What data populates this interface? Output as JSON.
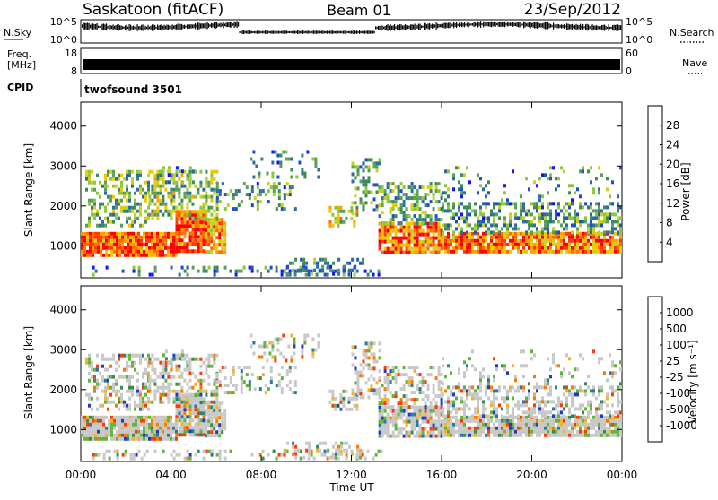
{
  "header": {
    "station": "Saskatoon (fitACF)",
    "beam": "Beam 01",
    "date": "23/Sep/2012"
  },
  "status_panels": {
    "nsky_label": "N.Sky",
    "nsky_ticks": [
      "10^5",
      "10^0"
    ],
    "nsearch_label": "N.Search",
    "nsearch_ticks": [
      "10^5",
      "10^0"
    ],
    "freq_label_1": "Freq.",
    "freq_label_2": "[MHz]",
    "freq_ticks": [
      "18",
      "8"
    ],
    "nave_label": "Nave",
    "nave_ticks": [
      "60",
      "0"
    ],
    "cpid_label": "CPID",
    "cpid_value": "twofsound 3501"
  },
  "chart_data": [
    {
      "type": "heatmap",
      "name": "power",
      "xlabel": "Time UT",
      "ylabel": "Slant Range [km]",
      "xlim": [
        0,
        24
      ],
      "ylim": [
        200,
        4600
      ],
      "x_ticks": [
        "00:00",
        "04:00",
        "08:00",
        "12:00",
        "16:00",
        "20:00",
        "00:00"
      ],
      "x_tick_values": [
        0,
        4,
        8,
        12,
        16,
        20,
        24
      ],
      "y_ticks": [
        "1000",
        "2000",
        "3000",
        "4000"
      ],
      "y_tick_values": [
        1000,
        2000,
        3000,
        4000
      ],
      "colorbar": {
        "label": "Power [dB]",
        "ticks": [
          "4",
          "8",
          "12",
          "16",
          "20",
          "24",
          "28"
        ],
        "tick_values": [
          4,
          8,
          12,
          16,
          20,
          24,
          28
        ],
        "range": [
          0,
          32
        ],
        "colors": [
          "#1414ff",
          "#1e50c8",
          "#2d6ea0",
          "#3c8c5a",
          "#5aa05a",
          "#8cc83c",
          "#c8d21e",
          "#f0c800",
          "#ffa000",
          "#ff6e00",
          "#ff3c00",
          "#ff0000"
        ]
      }
    },
    {
      "type": "heatmap",
      "name": "velocity",
      "xlabel": "Time UT",
      "ylabel": "Slant Range [km]",
      "xlim": [
        0,
        24
      ],
      "ylim": [
        200,
        4600
      ],
      "x_ticks": [
        "00:00",
        "04:00",
        "08:00",
        "12:00",
        "16:00",
        "20:00",
        "00:00"
      ],
      "x_tick_values": [
        0,
        4,
        8,
        12,
        16,
        20,
        24
      ],
      "y_ticks": [
        "1000",
        "2000",
        "3000",
        "4000"
      ],
      "y_tick_values": [
        1000,
        2000,
        3000,
        4000
      ],
      "colorbar": {
        "label": "Velocity [m s⁻¹]",
        "ticks": [
          "1000",
          "500",
          "100",
          "25",
          "-25",
          "-100",
          "-500",
          "-1000"
        ],
        "colors": [
          "#1e3cc8",
          "#2878a0",
          "#3c8c50",
          "#64b43c",
          "#c8c8c8",
          "#f0b428",
          "#ff7800",
          "#ff3c00",
          "#e60000"
        ]
      }
    }
  ]
}
